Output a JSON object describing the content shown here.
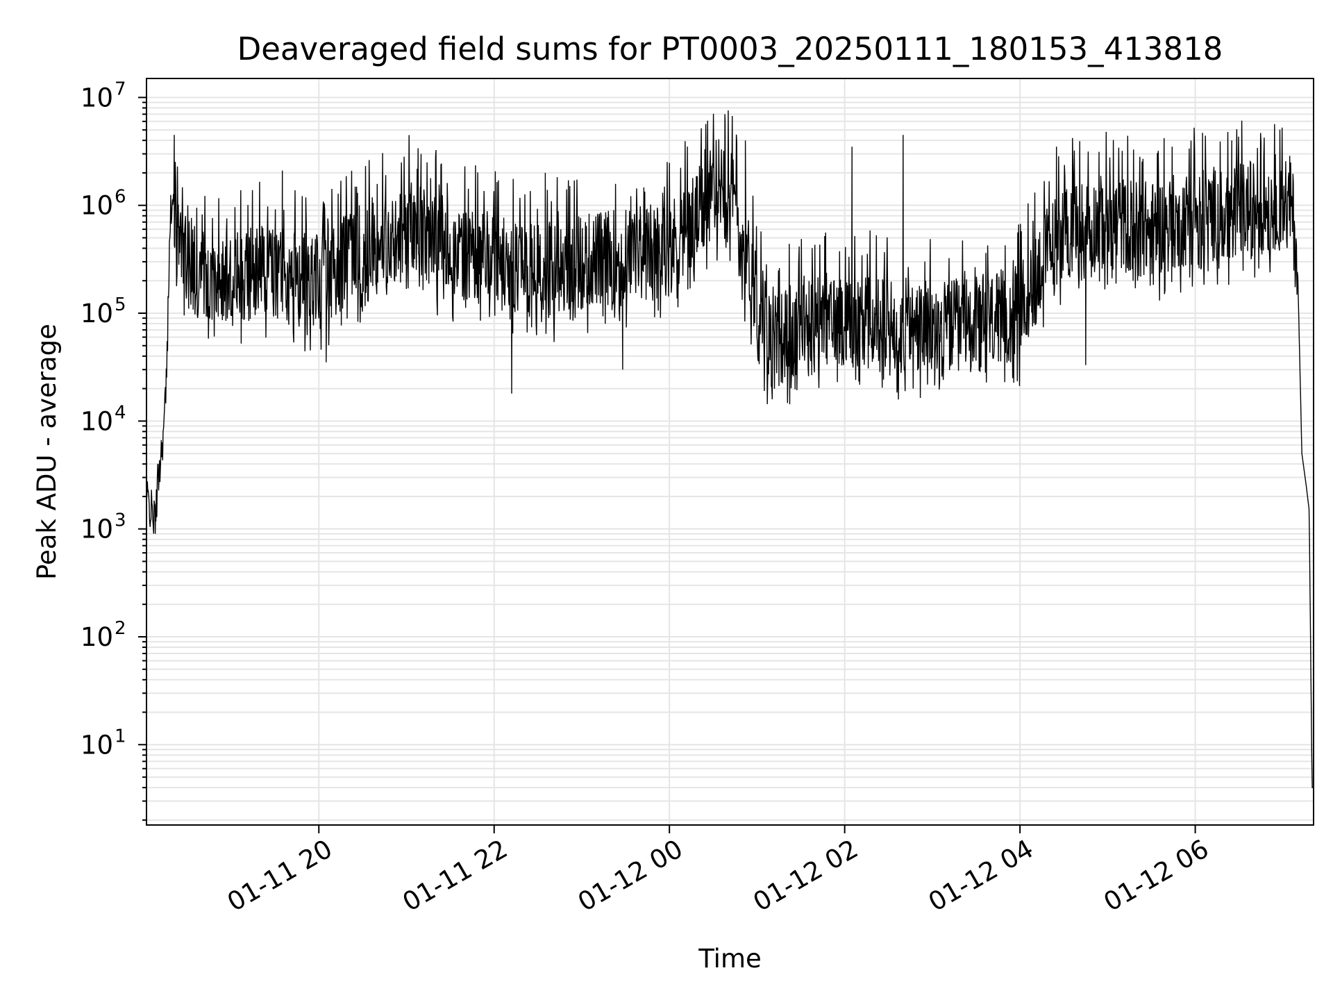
{
  "chart_data": {
    "type": "line",
    "title": "Deaveraged field sums for PT0003_20250111_180153_413818",
    "xlabel": "Time",
    "ylabel": "Peak ADU - average",
    "y_scale": "log",
    "ylim": [
      1.8,
      15000000
    ],
    "xlim": [
      "2025-01-11 18:02",
      "2025-01-12 07:21"
    ],
    "x_ticks": [
      "01-11 20",
      "01-11 22",
      "01-12 00",
      "01-12 02",
      "01-12 04",
      "01-12 06"
    ],
    "y_ticks": [
      {
        "base": "10",
        "exp": "1",
        "value": 10
      },
      {
        "base": "10",
        "exp": "2",
        "value": 100
      },
      {
        "base": "10",
        "exp": "3",
        "value": 1000
      },
      {
        "base": "10",
        "exp": "4",
        "value": 10000
      },
      {
        "base": "10",
        "exp": "5",
        "value": 100000
      },
      {
        "base": "10",
        "exp": "6",
        "value": 1000000
      },
      {
        "base": "10",
        "exp": "7",
        "value": 10000000
      }
    ],
    "grid": true,
    "line_color": "#000000",
    "grid_color": "#e5e5e5",
    "series": [
      {
        "x": [
          "2025-01-11 18:02",
          "2025-01-11 18:05",
          "2025-01-11 18:08",
          "2025-01-11 18:10",
          "2025-01-11 18:12",
          "2025-01-11 18:14",
          "2025-01-11 18:16",
          "2025-01-11 18:18",
          "2025-01-11 18:21",
          "2025-01-11 18:25",
          "2025-01-11 18:30",
          "2025-01-11 18:36",
          "2025-01-11 18:45",
          "2025-01-11 19:00",
          "2025-01-11 19:15",
          "2025-01-11 19:30",
          "2025-01-11 20:00",
          "2025-01-11 20:30",
          "2025-01-11 21:00",
          "2025-01-11 21:30",
          "2025-01-11 22:00",
          "2025-01-11 22:30",
          "2025-01-11 23:00",
          "2025-01-11 23:30",
          "2025-01-12 00:00",
          "2025-01-12 00:20",
          "2025-01-12 00:38",
          "2025-01-12 00:50",
          "2025-01-12 01:00",
          "2025-01-12 01:10",
          "2025-01-12 01:30",
          "2025-01-12 02:00",
          "2025-01-12 02:30",
          "2025-01-12 03:00",
          "2025-01-12 03:30",
          "2025-01-12 04:00",
          "2025-01-12 04:15",
          "2025-01-12 04:30",
          "2025-01-12 05:00",
          "2025-01-12 05:30",
          "2025-01-12 06:00",
          "2025-01-12 06:30",
          "2025-01-12 06:50",
          "2025-01-12 07:00",
          "2025-01-12 07:06",
          "2025-01-12 07:10",
          "2025-01-12 07:13",
          "2025-01-12 07:16",
          "2025-01-12 07:18",
          "2025-01-12 07:20"
        ],
        "y": [
          2000,
          1500,
          1200,
          3000,
          5000,
          9000,
          30000,
          800000,
          1000000,
          700000,
          300000,
          250000,
          250000,
          200000,
          250000,
          250000,
          200000,
          400000,
          700000,
          400000,
          300000,
          250000,
          300000,
          350000,
          400000,
          800000,
          2000000,
          500000,
          150000,
          50000,
          80000,
          90000,
          80000,
          70000,
          80000,
          100000,
          300000,
          600000,
          700000,
          600000,
          800000,
          900000,
          1000000,
          1200000,
          1000000,
          300000,
          5000,
          2500,
          1500,
          4
        ]
      }
    ],
    "spikes": [
      {
        "x": "2025-01-11 18:21",
        "y": 4500000
      },
      {
        "x": "2025-01-11 19:35",
        "y": 2100000
      },
      {
        "x": "2025-01-11 21:10",
        "y": 3000000
      },
      {
        "x": "2025-01-11 21:40",
        "y": 2300000
      },
      {
        "x": "2025-01-11 22:35",
        "y": 2000000
      },
      {
        "x": "2025-01-12 00:38",
        "y": 7000000
      },
      {
        "x": "2025-01-12 00:52",
        "y": 4000000
      },
      {
        "x": "2025-01-12 02:05",
        "y": 3500000
      },
      {
        "x": "2025-01-12 02:40",
        "y": 4500000
      },
      {
        "x": "2025-01-12 04:25",
        "y": 3500000
      },
      {
        "x": "2025-01-12 05:10",
        "y": 3200000
      },
      {
        "x": "2025-01-12 06:05",
        "y": 4700000
      },
      {
        "x": "2025-01-12 06:25",
        "y": 4000000
      },
      {
        "x": "2025-01-12 06:45",
        "y": 3800000
      }
    ],
    "dips": [
      {
        "x": "2025-01-11 18:08",
        "y": 900
      },
      {
        "x": "2025-01-11 20:05",
        "y": 35000
      },
      {
        "x": "2025-01-11 22:12",
        "y": 18000
      },
      {
        "x": "2025-01-11 23:28",
        "y": 30000
      },
      {
        "x": "2025-01-12 01:05",
        "y": 19000
      },
      {
        "x": "2025-01-12 01:55",
        "y": 23000
      },
      {
        "x": "2025-01-12 03:05",
        "y": 23000
      },
      {
        "x": "2025-01-12 03:55",
        "y": 25000
      },
      {
        "x": "2025-01-12 04:45",
        "y": 33000
      }
    ]
  }
}
